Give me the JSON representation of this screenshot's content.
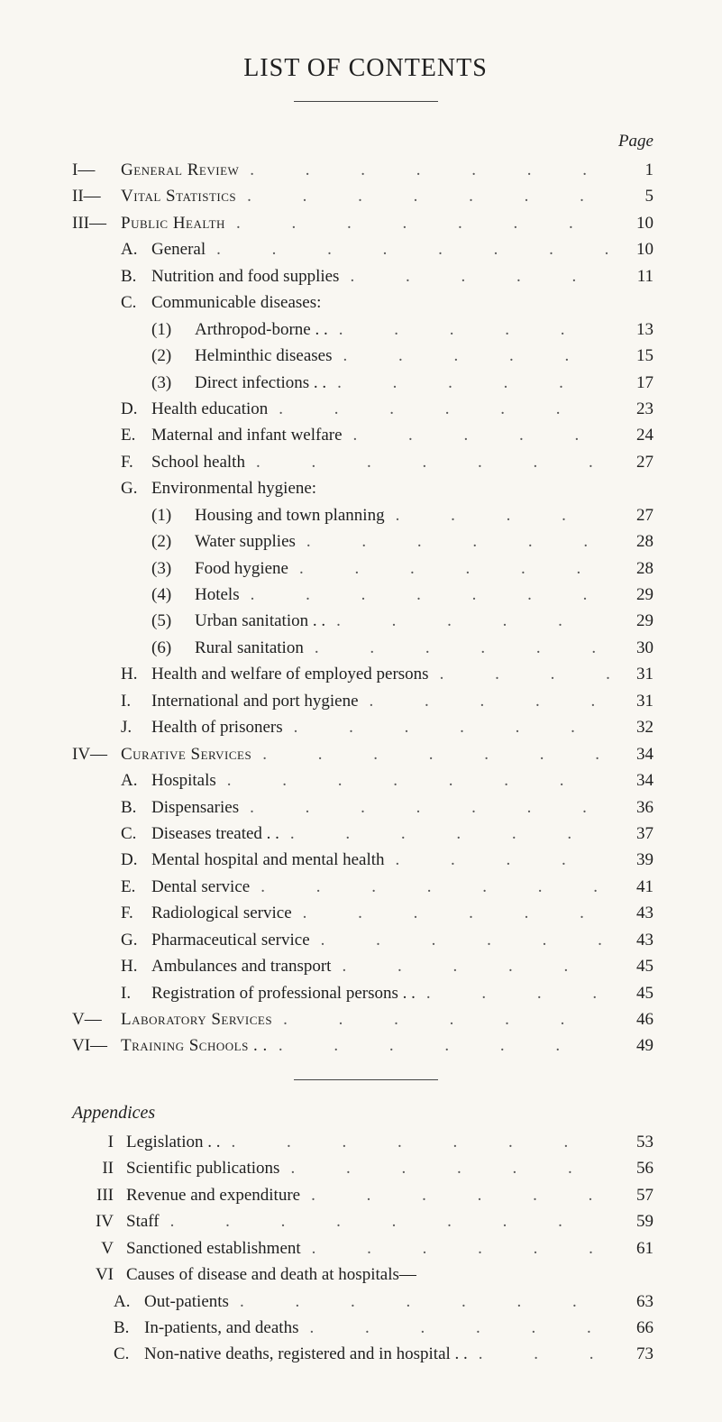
{
  "title": "LIST OF CONTENTS",
  "pageLabel": "Page",
  "appendixTitle": "Appendices",
  "dotsGlyph": ". .",
  "entries": [
    {
      "level": 1,
      "mark": "I—",
      "label": "General Review",
      "smallcaps": true,
      "page": "1"
    },
    {
      "level": 1,
      "mark": "II—",
      "label": "Vital Statistics",
      "smallcaps": true,
      "page": "5"
    },
    {
      "level": 1,
      "mark": "III—",
      "label": "Public Health",
      "smallcaps": true,
      "page": "10"
    },
    {
      "level": 2,
      "mark": "A.",
      "label": "General",
      "page": "10"
    },
    {
      "level": 2,
      "mark": "B.",
      "label": "Nutrition and food supplies",
      "page": "11"
    },
    {
      "level": 2,
      "mark": "C.",
      "label": "Communicable diseases:",
      "page": "",
      "nodots": true
    },
    {
      "level": 3,
      "mark": "(1)",
      "label": "Arthropod-borne . .",
      "page": "13"
    },
    {
      "level": 3,
      "mark": "(2)",
      "label": "Helminthic diseases",
      "page": "15"
    },
    {
      "level": 3,
      "mark": "(3)",
      "label": "Direct infections . .",
      "page": "17"
    },
    {
      "level": 2,
      "mark": "D.",
      "label": "Health education",
      "page": "23"
    },
    {
      "level": 2,
      "mark": "E.",
      "label": "Maternal and infant welfare",
      "page": "24"
    },
    {
      "level": 2,
      "mark": "F.",
      "label": "School health",
      "page": "27"
    },
    {
      "level": 2,
      "mark": "G.",
      "label": "Environmental hygiene:",
      "page": "",
      "nodots": true
    },
    {
      "level": 3,
      "mark": "(1)",
      "label": "Housing and town planning",
      "page": "27"
    },
    {
      "level": 3,
      "mark": "(2)",
      "label": "Water supplies",
      "page": "28"
    },
    {
      "level": 3,
      "mark": "(3)",
      "label": "Food hygiene",
      "page": "28"
    },
    {
      "level": 3,
      "mark": "(4)",
      "label": "Hotels",
      "page": "29"
    },
    {
      "level": 3,
      "mark": "(5)",
      "label": "Urban sanitation . .",
      "page": "29"
    },
    {
      "level": 3,
      "mark": "(6)",
      "label": "Rural sanitation",
      "page": "30"
    },
    {
      "level": 2,
      "mark": "H.",
      "label": "Health and welfare of employed persons",
      "page": "31"
    },
    {
      "level": 2,
      "mark": "I.",
      "label": "International and port hygiene",
      "page": "31"
    },
    {
      "level": 2,
      "mark": "J.",
      "label": "Health of prisoners",
      "page": "32"
    },
    {
      "level": 1,
      "mark": "IV—",
      "label": "Curative Services",
      "smallcaps": true,
      "page": "34"
    },
    {
      "level": 2,
      "mark": "A.",
      "label": "Hospitals",
      "page": "34"
    },
    {
      "level": 2,
      "mark": "B.",
      "label": "Dispensaries",
      "page": "36"
    },
    {
      "level": 2,
      "mark": "C.",
      "label": "Diseases treated . .",
      "page": "37"
    },
    {
      "level": 2,
      "mark": "D.",
      "label": "Mental hospital and mental health",
      "page": "39"
    },
    {
      "level": 2,
      "mark": "E.",
      "label": "Dental service",
      "page": "41"
    },
    {
      "level": 2,
      "mark": "F.",
      "label": "Radiological service",
      "page": "43"
    },
    {
      "level": 2,
      "mark": "G.",
      "label": "Pharmaceutical service",
      "page": "43"
    },
    {
      "level": 2,
      "mark": "H.",
      "label": "Ambulances and transport",
      "page": "45"
    },
    {
      "level": 2,
      "mark": "I.",
      "label": "Registration of professional persons . .",
      "page": "45"
    },
    {
      "level": 1,
      "mark": "V—",
      "label": "Laboratory Services",
      "smallcaps": true,
      "page": "46"
    },
    {
      "level": 1,
      "mark": "VI—",
      "label": "Training Schools . .",
      "smallcaps": true,
      "page": "49"
    }
  ],
  "appendices": [
    {
      "level": 1,
      "mark": "I",
      "label": "Legislation . .",
      "page": "53"
    },
    {
      "level": 1,
      "mark": "II",
      "label": "Scientific publications",
      "page": "56"
    },
    {
      "level": 1,
      "mark": "III",
      "label": "Revenue and expenditure",
      "page": "57"
    },
    {
      "level": 1,
      "mark": "IV",
      "label": "Staff",
      "page": "59"
    },
    {
      "level": 1,
      "mark": "V",
      "label": "Sanctioned establishment",
      "page": "61"
    },
    {
      "level": 1,
      "mark": "VI",
      "label": "Causes of disease and death at hospitals—",
      "page": "",
      "nodots": true
    },
    {
      "level": 2,
      "mark": "A.",
      "label": "Out-patients",
      "page": "63"
    },
    {
      "level": 2,
      "mark": "B.",
      "label": "In-patients, and deaths",
      "page": "66"
    },
    {
      "level": 2,
      "mark": "C.",
      "label": "Non-native deaths, registered and in hospital . .",
      "page": "73"
    }
  ]
}
